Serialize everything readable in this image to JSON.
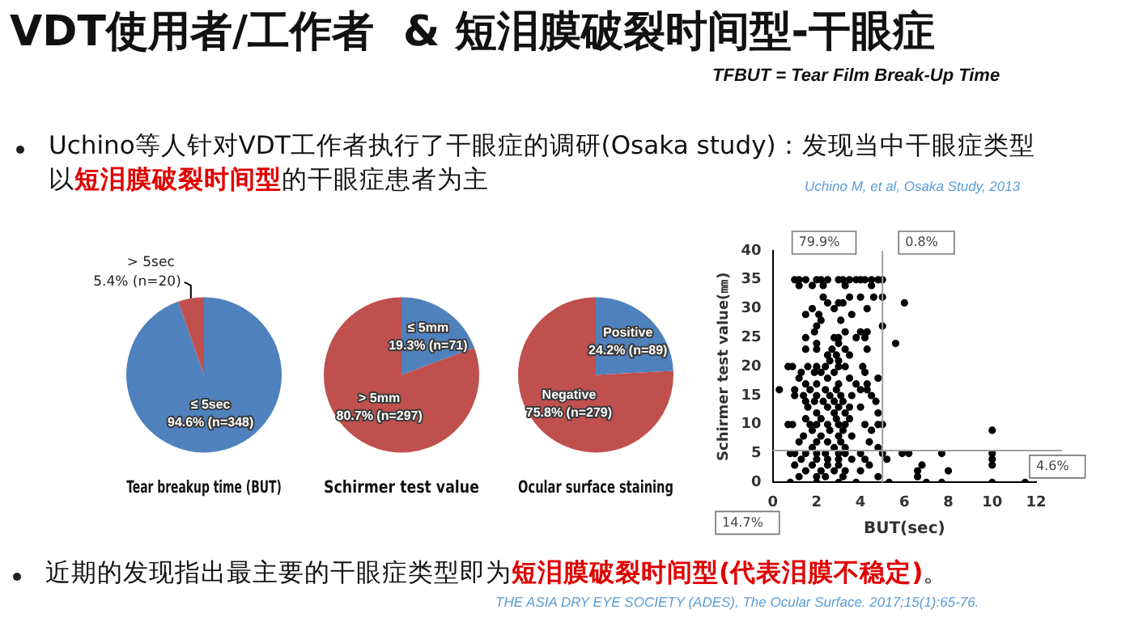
{
  "chart_data": [
    {
      "type": "other",
      "title": "VDT使用者/工作者  & 短泪膜破裂时间型-干眼症",
      "subtitle": "TFBUT = Tear Film Break-Up Time",
      "annotations": [
        "Uchino等人针对VDT工作者执行了干眼症的调研(Osaka study)：发现当中干眼症类型",
        "以",
        "短泪膜破裂时间型",
        "的干眼症患者为主",
        "Uchino M, et al, Osaka Study, 2013",
        "近期的发现指出最主要的干眼症类型即为",
        "短泪膜破裂时间型(代表泪膜不稳定)",
        "。",
        "THE ASIA DRY EYE SOCIETY (ADES), The Ocular Surface. 2017;15(1):65-76."
      ]
    },
    {
      "type": "pie",
      "title": "Tear breakup time (BUT)",
      "categories": [
        "≤ 5sec",
        "> 5sec"
      ],
      "values": [
        94.6,
        5.4
      ],
      "colors": [
        "#4f81bd",
        "#c0504d"
      ],
      "value_labels": [
        "94.6% (n=348)",
        "5.4% (n=20)"
      ]
    },
    {
      "type": "pie",
      "title": "Schirmer test value",
      "categories": [
        "≤ 5mm",
        "> 5mm"
      ],
      "values": [
        19.3,
        80.7
      ],
      "colors": [
        "#4f81bd",
        "#c0504d"
      ],
      "value_labels": [
        "19.3% (n=71)",
        "80.7% (n=297)"
      ]
    },
    {
      "type": "pie",
      "title": "Ocular surface staining",
      "categories": [
        "Positive",
        "Negative"
      ],
      "values": [
        24.2,
        75.8
      ],
      "colors": [
        "#4f81bd",
        "#c0504d"
      ],
      "value_labels": [
        "24.2% (n=89)",
        "75.8% (n=279)"
      ]
    },
    {
      "type": "scatter",
      "xlabel": "BUT(sec)",
      "ylabel": "Schirmer test value(㎜)",
      "xlim": [
        0,
        12
      ],
      "ylim": [
        0,
        40
      ],
      "xticks": [
        0,
        2,
        4,
        6,
        8,
        10,
        12
      ],
      "yticks": [
        0,
        5,
        10,
        15,
        20,
        25,
        30,
        35,
        40
      ],
      "marker": "circle",
      "grid": false,
      "ref_lines": [
        {
          "axis": "x",
          "value": 5,
          "color": "#a0a0a0"
        },
        {
          "axis": "y",
          "value": 5.5,
          "color": "#a0a0a0"
        }
      ],
      "annotations": [
        "79.9%",
        "0.8%",
        "4.6%",
        "14.7%"
      ],
      "series": [
        {
          "color": "#000000",
          "x": [
            1,
            1.2,
            1.5,
            2,
            2.2,
            2.5,
            3,
            3.2,
            3.5,
            3.8,
            4,
            4.2,
            4.5,
            4.8,
            5,
            1.2,
            1.8,
            2.3,
            3.3,
            4.5,
            2.3,
            3.5,
            4,
            4.6,
            5,
            2.5,
            3,
            3.2,
            6,
            1.8,
            2.8,
            4.3,
            1.5,
            2.1,
            3.6,
            2.2,
            3.1,
            2,
            5,
            1.9,
            3.3,
            4,
            4.3,
            1.5,
            2.8,
            3,
            3.8,
            4.2,
            5.6,
            2,
            3,
            1.5,
            2,
            2.7,
            3.3,
            4.3,
            2.5,
            2.9,
            3.5,
            2.6,
            3,
            0.7,
            0.9,
            1.6,
            2,
            2.4,
            3,
            3.3,
            4.1,
            1.3,
            1.9,
            2.2,
            2.8,
            4.2,
            1.2,
            2.5,
            3.5,
            4.8,
            1.5,
            2,
            3,
            3.8,
            4.3,
            0.3,
            1,
            1.7,
            2.4,
            2.9,
            4,
            4.3,
            1,
            1.4,
            2,
            2.6,
            3.1,
            3.6,
            4.5,
            1.5,
            1.9,
            2.3,
            2.8,
            3.2,
            4.7,
            1.6,
            2.5,
            3,
            3.5,
            4,
            2,
            2.8,
            3.3,
            4.8,
            1.5,
            2.2,
            2.9,
            3.5,
            0.7,
            0.9,
            1.7,
            2,
            2.5,
            3,
            3.3,
            4.2,
            4.8,
            5,
            1.8,
            2.6,
            3.2,
            4.5,
            10,
            1.4,
            2.2,
            3,
            3.6,
            1.2,
            2,
            2.5,
            3.1,
            4.4,
            1.8,
            2.8,
            3.3,
            4.8,
            0.8,
            1,
            1.5,
            2,
            2.4,
            3,
            3.3,
            4,
            5,
            5.9,
            6.2,
            7.7,
            10,
            1.3,
            2,
            2.5,
            3,
            3.6,
            4.2,
            5.2,
            10,
            1,
            1.8,
            2.5,
            3,
            4.4,
            6.8,
            10,
            1.5,
            2.2,
            2.8,
            3.3,
            4,
            6.6,
            8,
            1.2,
            2,
            2.4,
            3.2,
            4.8,
            6.6,
            0.8,
            2,
            3,
            3.8,
            5.3,
            7,
            7.7,
            10,
            11.5
          ],
          "values": [
            35,
            35,
            35,
            35,
            35,
            35,
            35,
            35,
            35,
            35,
            35,
            35,
            35,
            35,
            35,
            34,
            34,
            34,
            34,
            34,
            32,
            32,
            32,
            32,
            32,
            31,
            31,
            31,
            31,
            30,
            30,
            30,
            29,
            29,
            29,
            28,
            28,
            27,
            27,
            26,
            26,
            26,
            26,
            25,
            25,
            25,
            25,
            25,
            24,
            24,
            24,
            23,
            23,
            23,
            23,
            23,
            22,
            22,
            22,
            21,
            21,
            20,
            20,
            20,
            20,
            20,
            20,
            20,
            20,
            19,
            19,
            19,
            19,
            19,
            18,
            18,
            18,
            18,
            17,
            17,
            17,
            17,
            17,
            16,
            16,
            16,
            16,
            16,
            16,
            16,
            15,
            15,
            15,
            15,
            15,
            15,
            15,
            14,
            14,
            14,
            14,
            14,
            14,
            13,
            13,
            13,
            13,
            13,
            12,
            12,
            12,
            12,
            11,
            11,
            11,
            11,
            10,
            10,
            10,
            10,
            10,
            10,
            10,
            10,
            10,
            10,
            9,
            9,
            9,
            9,
            9,
            8,
            8,
            8,
            8,
            7,
            7,
            7,
            7,
            7,
            6,
            6,
            6,
            6,
            5,
            5,
            5,
            5,
            5,
            5,
            5,
            5,
            5,
            5,
            5,
            5,
            5,
            4,
            4,
            4,
            4,
            4,
            4,
            4,
            4,
            3,
            3,
            3,
            3,
            3,
            3,
            3,
            2,
            2,
            2,
            2,
            2,
            2,
            2,
            1,
            1,
            1,
            1,
            1,
            1,
            0,
            0,
            0,
            0,
            0,
            0,
            0,
            0,
            0
          ]
        }
      ]
    }
  ]
}
